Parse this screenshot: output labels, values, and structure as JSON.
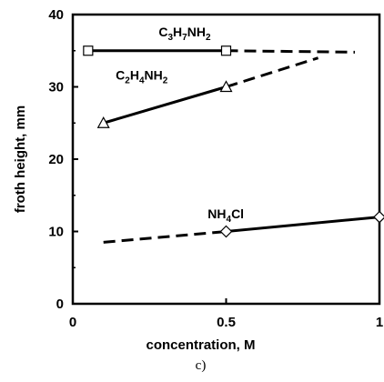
{
  "chart_data": {
    "type": "line",
    "title": "",
    "panel_label": "c)",
    "xlabel": "concentration, M",
    "ylabel": "froth height, mm",
    "xlim": [
      0,
      1
    ],
    "ylim": [
      0,
      40
    ],
    "x_ticks": [
      0,
      0.5,
      1
    ],
    "x_tick_labels": [
      "0",
      "0.5",
      "1"
    ],
    "y_ticks": [
      0,
      10,
      20,
      30,
      40
    ],
    "y_tick_labels": [
      "0",
      "10",
      "20",
      "30",
      "40"
    ],
    "grid": false,
    "legend": "none",
    "series": [
      {
        "name": "C3H7NH2",
        "color": "#000000",
        "marker": "square",
        "points": [
          [
            0.05,
            35
          ],
          [
            0.5,
            35
          ]
        ],
        "solid": [
          [
            0.05,
            35
          ],
          [
            0.5,
            35
          ]
        ],
        "dashed": [
          [
            0.5,
            35
          ],
          [
            0.92,
            34.8
          ]
        ]
      },
      {
        "name": "C2H4NH2",
        "color": "#000000",
        "marker": "triangle",
        "points": [
          [
            0.1,
            25
          ],
          [
            0.5,
            30
          ]
        ],
        "solid": [
          [
            0.1,
            25
          ],
          [
            0.5,
            30
          ]
        ],
        "dashed": [
          [
            0.5,
            30
          ],
          [
            0.8,
            34
          ]
        ]
      },
      {
        "name": "NH4Cl",
        "color": "#000000",
        "marker": "diamond",
        "points": [
          [
            0.5,
            10
          ],
          [
            1.0,
            12
          ]
        ],
        "solid": [
          [
            0.5,
            10
          ],
          [
            1.0,
            12
          ]
        ],
        "dashed": [
          [
            0.1,
            8.5
          ],
          [
            0.5,
            10
          ]
        ]
      }
    ],
    "annotations": [
      {
        "name": "c3h7nh2",
        "parts": [
          [
            "C",
            false
          ],
          [
            "3",
            true
          ],
          [
            "H",
            false
          ],
          [
            "7",
            true
          ],
          [
            "NH",
            false
          ],
          [
            "2",
            true
          ]
        ],
        "x": 0.28,
        "y": 37.0
      },
      {
        "name": "c2h4nh2",
        "parts": [
          [
            "C",
            false
          ],
          [
            "2",
            true
          ],
          [
            "H",
            false
          ],
          [
            "4",
            true
          ],
          [
            "NH",
            false
          ],
          [
            "2",
            true
          ]
        ],
        "x": 0.14,
        "y": 31.0
      },
      {
        "name": "nh4cl",
        "parts": [
          [
            "NH",
            false
          ],
          [
            "4",
            true
          ],
          [
            "Cl",
            false
          ]
        ],
        "x": 0.44,
        "y": 11.8
      }
    ]
  }
}
